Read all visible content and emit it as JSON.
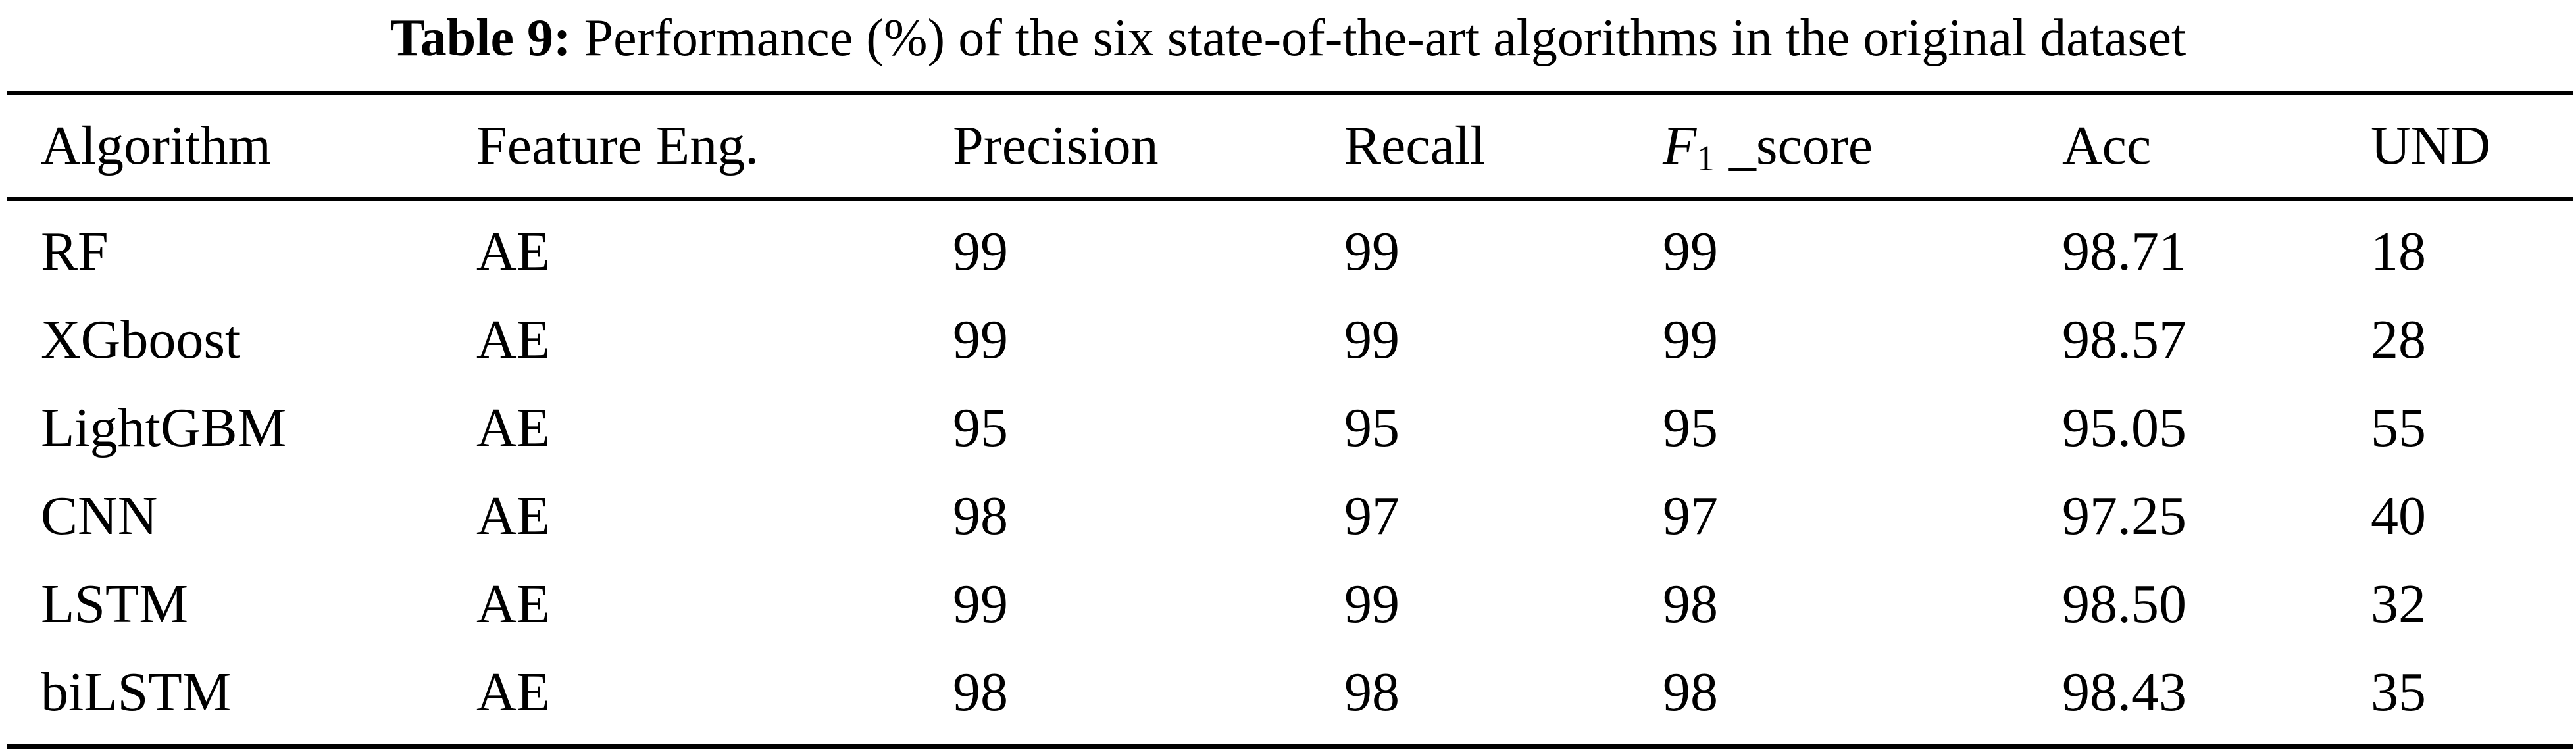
{
  "caption": {
    "label": "Table 9:",
    "text": " Performance (%) of the six state-of-the-art algorithms in the original dataset"
  },
  "table": {
    "headers": [
      "Algorithm",
      "Feature Eng.",
      "Precision",
      "Recall",
      "F",
      "Acc",
      "UND"
    ],
    "f1_header": {
      "symbol": "F",
      "subscript": "1",
      "suffix": " _score"
    },
    "rows": [
      [
        "RF",
        "AE",
        "99",
        "99",
        "99",
        "98.71",
        "18"
      ],
      [
        "XGboost",
        "AE",
        "99",
        "99",
        "99",
        "98.57",
        "28"
      ],
      [
        "LightGBM",
        "AE",
        "95",
        "95",
        "95",
        "95.05",
        "55"
      ],
      [
        "CNN",
        "AE",
        "98",
        "97",
        "97",
        "97.25",
        "40"
      ],
      [
        "LSTM",
        "AE",
        "99",
        "99",
        "98",
        "98.50",
        "32"
      ],
      [
        "biLSTM",
        "AE",
        "98",
        "98",
        "98",
        "98.43",
        "35"
      ]
    ]
  }
}
